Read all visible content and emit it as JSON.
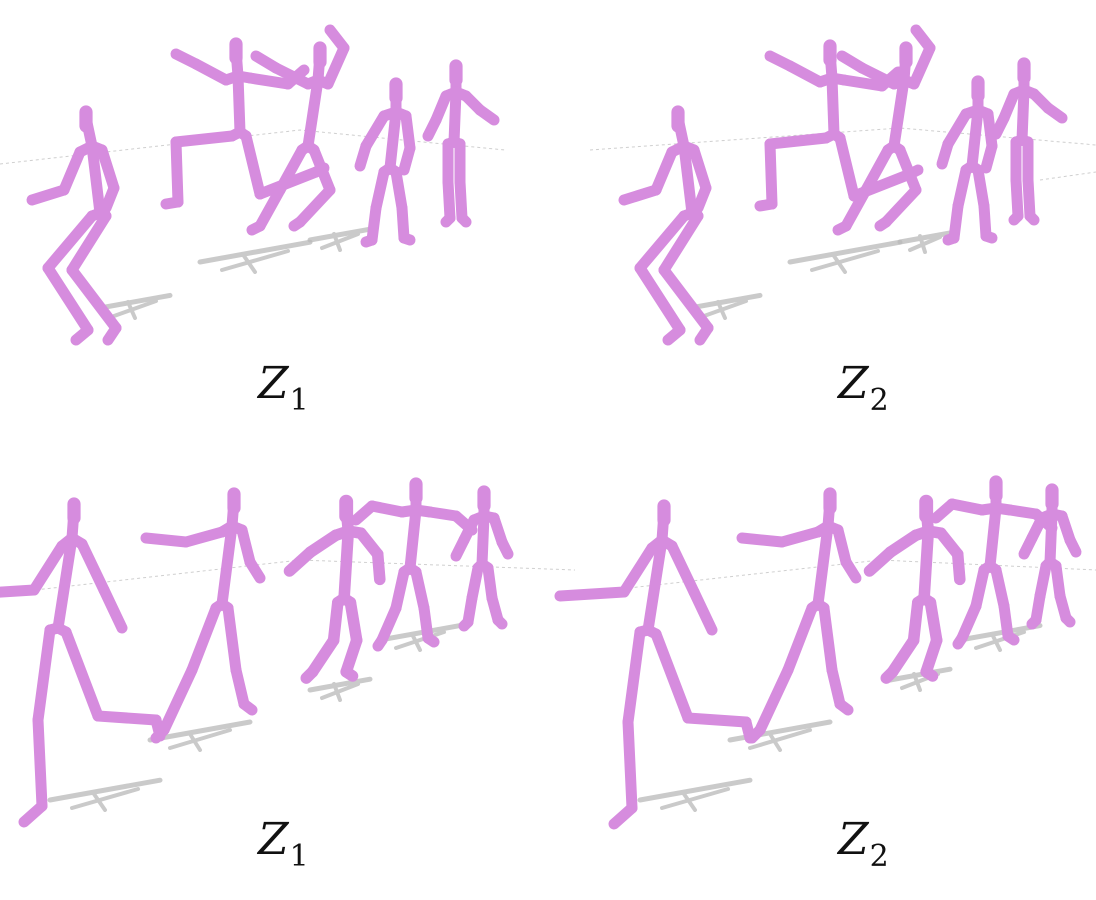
{
  "colors": {
    "figure": "#d68cde",
    "figure_dark": "#b66ac0",
    "shadow": "#b9b9b9",
    "ground_line": "#cfcfcf"
  },
  "panels": [
    {
      "caption_main": "Z",
      "caption_sub": "1"
    },
    {
      "caption_main": "Z",
      "caption_sub": "2"
    },
    {
      "caption_main": "Z",
      "caption_sub": "1"
    },
    {
      "caption_main": "Z",
      "caption_sub": "2"
    }
  ]
}
